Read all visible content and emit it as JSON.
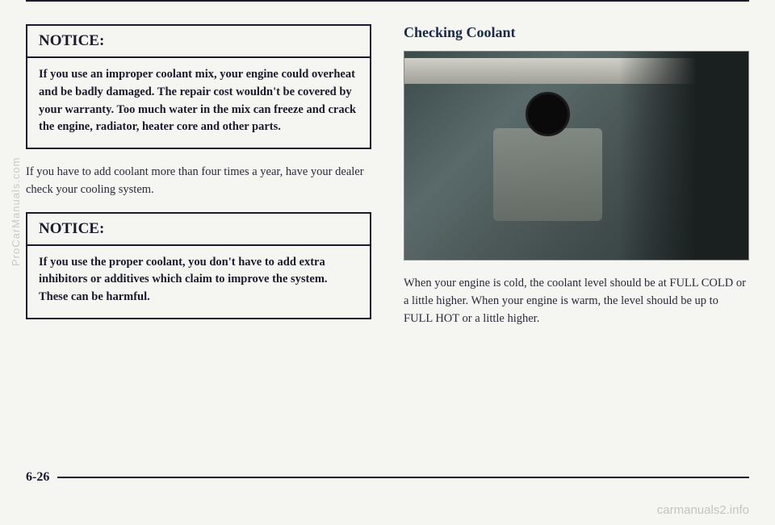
{
  "left": {
    "notice1": {
      "header": "NOTICE:",
      "body": "If you use an improper coolant mix, your engine could overheat and be badly damaged. The repair cost wouldn't be covered by your warranty. Too much water in the mix can freeze and crack the engine, radiator, heater core and other parts."
    },
    "para": "If you have to add coolant more than four times a year, have your dealer check your cooling system.",
    "notice2": {
      "header": "NOTICE:",
      "body": "If you use the proper coolant, you don't have to add extra inhibitors or additives which claim to improve the system. These can be harmful."
    }
  },
  "right": {
    "title": "Checking Coolant",
    "para": "When your engine is cold, the coolant level should be at FULL COLD or a little higher. When your engine is warm, the level should be up to FULL HOT or a little higher."
  },
  "pageNumber": "6-26",
  "watermarkSide": "ProCarManuals.com",
  "watermarkBottom": "carmanuals2.info",
  "colors": {
    "text": "#1a1a2e",
    "background": "#f5f5f2",
    "border": "#1a1a2e"
  },
  "photo": {
    "description": "engine-coolant-reservoir",
    "bg_gradient": [
      "#3a4a4a",
      "#5a6a6a",
      "#4a5555",
      "#2a3535"
    ],
    "cap_color": "#0a0a0a",
    "reservoir_color": "#8a9088",
    "hood_color": "#d0d0c8"
  }
}
